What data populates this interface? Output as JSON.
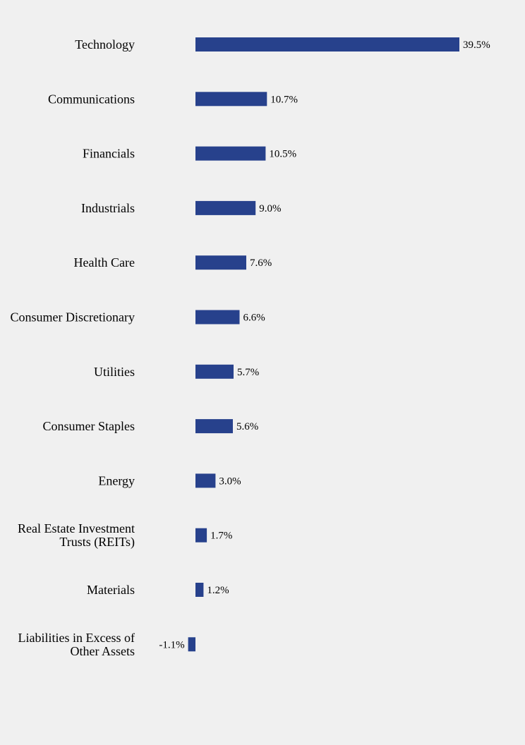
{
  "chart_data": {
    "type": "bar",
    "orientation": "horizontal",
    "title": "",
    "xlabel": "",
    "ylabel": "",
    "grid": false,
    "legend": "none",
    "bar_color": "#27418c",
    "categories": [
      [
        "Technology"
      ],
      [
        "Communications"
      ],
      [
        "Financials"
      ],
      [
        "Industrials"
      ],
      [
        "Health Care"
      ],
      [
        "Consumer Discretionary"
      ],
      [
        "Utilities"
      ],
      [
        "Consumer Staples"
      ],
      [
        "Energy"
      ],
      [
        "Real Estate Investment",
        "Trusts (REITs)"
      ],
      [
        "Materials"
      ],
      [
        "Liabilities in Excess of",
        "Other Assets"
      ]
    ],
    "values": [
      39.5,
      10.7,
      10.5,
      9.0,
      7.6,
      6.6,
      5.7,
      5.6,
      3.0,
      1.7,
      1.2,
      -1.1
    ],
    "value_labels": [
      "39.5%",
      "10.7%",
      "10.5%",
      "9.0%",
      "7.6%",
      "6.6%",
      "5.7%",
      "5.6%",
      "3.0%",
      "1.7%",
      "1.2%",
      "-1.1%"
    ],
    "xlim": [
      -1.1,
      39.5
    ]
  }
}
